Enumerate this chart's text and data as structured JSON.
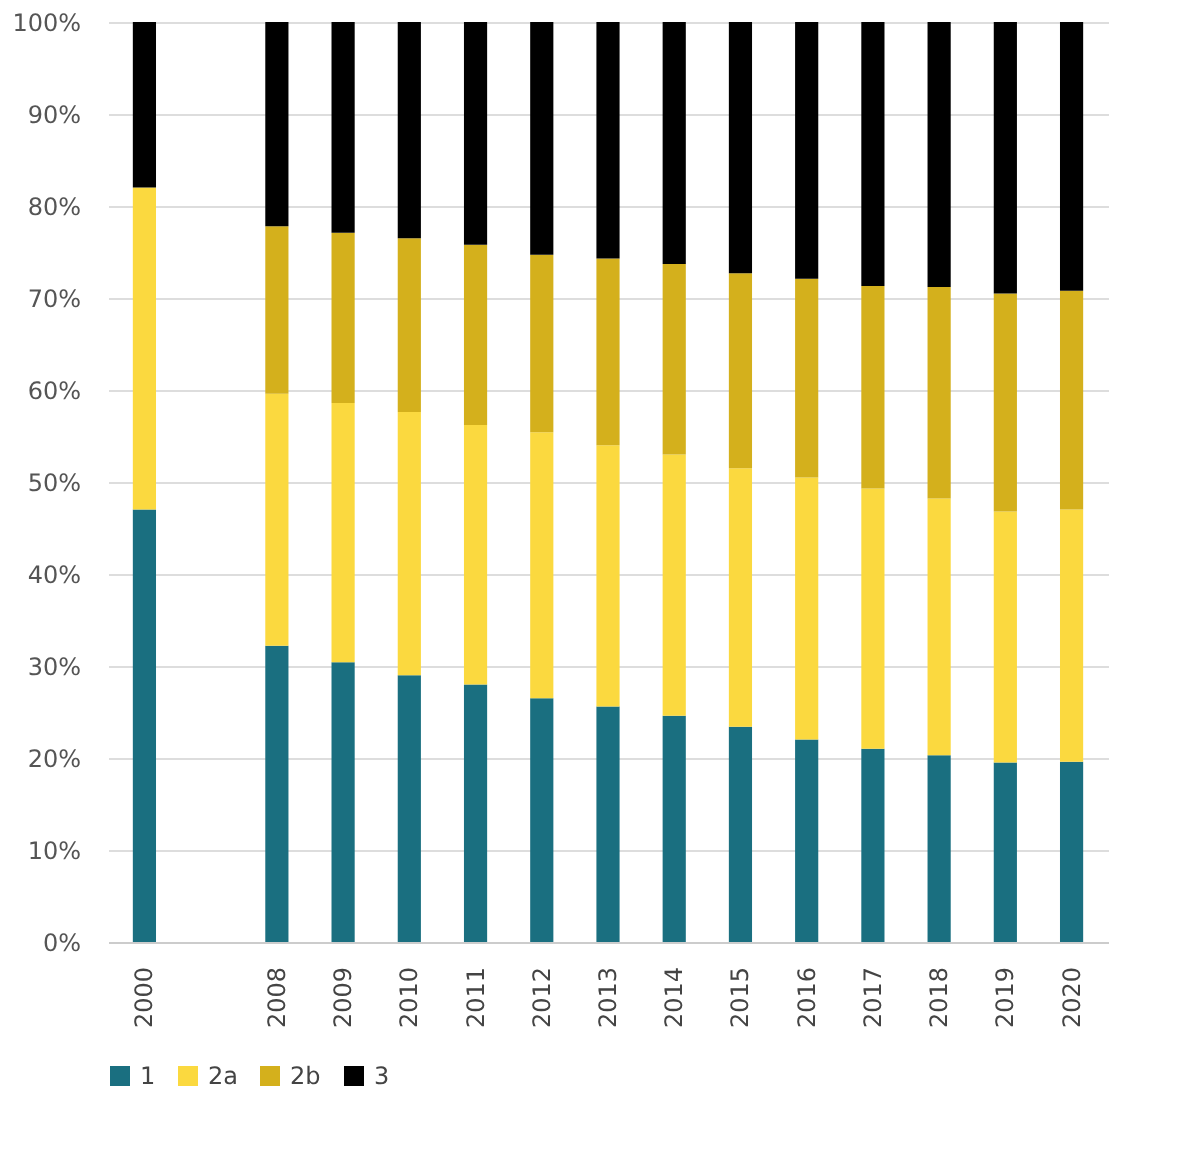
{
  "chart_data": {
    "type": "bar",
    "stacked": true,
    "categories": [
      "2000",
      null,
      "2008",
      "2009",
      "2010",
      "2011",
      "2012",
      "2013",
      "2014",
      "2015",
      "2016",
      "2017",
      "2018",
      "2019",
      "2020"
    ],
    "series": [
      {
        "name": "1",
        "color": "#1a6f80",
        "values": [
          47,
          null,
          32.2,
          30.4,
          29,
          28,
          26.5,
          25.6,
          24.6,
          23.4,
          22,
          21,
          20.3,
          19.5,
          19.6
        ]
      },
      {
        "name": "2a",
        "color": "#fbd93f",
        "values": [
          35,
          null,
          27.4,
          28.2,
          28.6,
          28.2,
          28.9,
          28.4,
          28.4,
          28.1,
          28.5,
          28.3,
          27.9,
          27.3,
          27.4
        ]
      },
      {
        "name": "2b",
        "color": "#d4b01c",
        "values": [
          null,
          null,
          18.2,
          18.5,
          18.9,
          19.6,
          19.3,
          20.3,
          20.7,
          21.2,
          21.6,
          22,
          23,
          23.7,
          23.8
        ]
      },
      {
        "name": "3",
        "color": "#000000",
        "values": [
          18,
          null,
          22.2,
          22.9,
          23.5,
          24.2,
          25.3,
          25.7,
          26.3,
          27.3,
          27.9,
          28.7,
          28.8,
          29.5,
          29.2
        ]
      }
    ],
    "ylim": [
      0,
      100
    ],
    "yticks": [
      {
        "value": 0,
        "label": "0%"
      },
      {
        "value": 10,
        "label": "10%"
      },
      {
        "value": 20,
        "label": "20%"
      },
      {
        "value": 30,
        "label": "30%"
      },
      {
        "value": 40,
        "label": "40%"
      },
      {
        "value": 50,
        "label": "50%"
      },
      {
        "value": 60,
        "label": "60%"
      },
      {
        "value": 70,
        "label": "70%"
      },
      {
        "value": 80,
        "label": "80%"
      },
      {
        "value": 90,
        "label": "90%"
      },
      {
        "value": 100,
        "label": "100%"
      }
    ],
    "grid": "y",
    "legend": "bottom"
  }
}
